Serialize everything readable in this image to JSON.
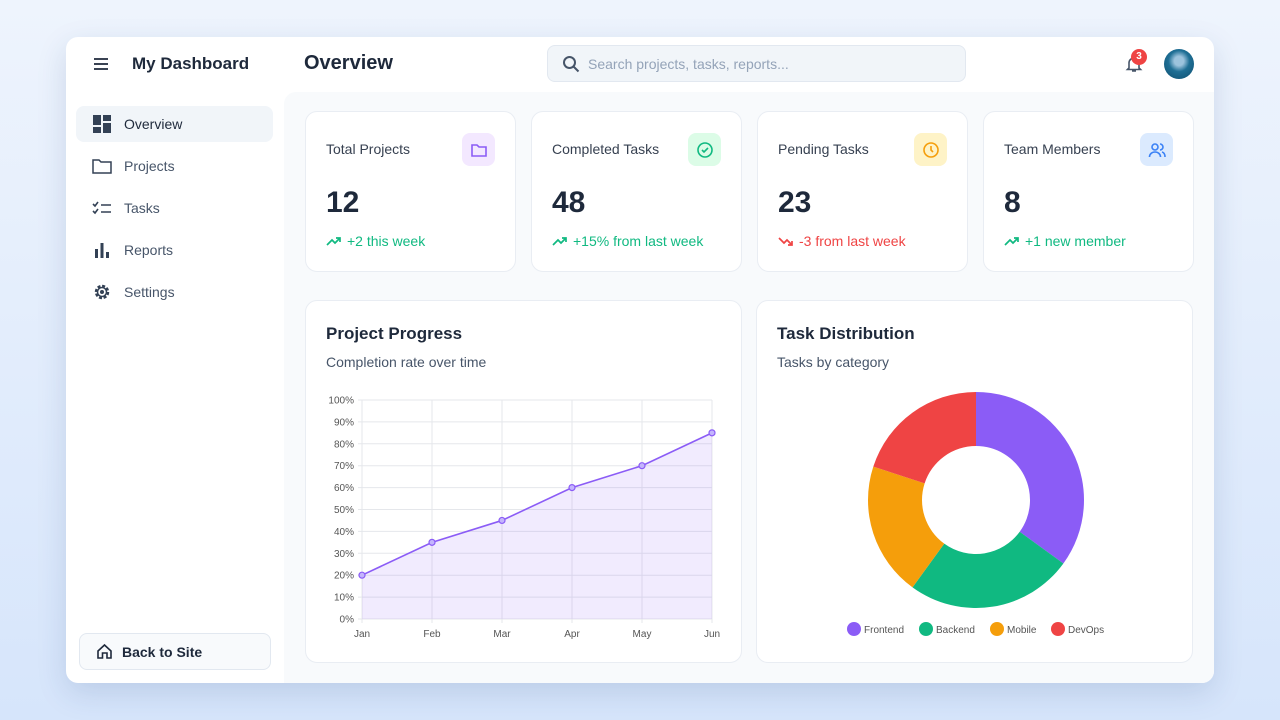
{
  "header": {
    "brand": "My Dashboard",
    "title": "Overview",
    "search_placeholder": "Search projects, tasks, reports...",
    "notifications": "3"
  },
  "sidebar": {
    "items": [
      {
        "label": "Overview",
        "icon": "dashboard-icon"
      },
      {
        "label": "Projects",
        "icon": "folder-icon"
      },
      {
        "label": "Tasks",
        "icon": "checklist-icon"
      },
      {
        "label": "Reports",
        "icon": "bar-chart-icon"
      },
      {
        "label": "Settings",
        "icon": "gear-icon"
      }
    ],
    "back": "Back to Site"
  },
  "stats": [
    {
      "label": "Total Projects",
      "value": "12",
      "change": "+2 this week",
      "trend": "up",
      "icon": "folder-icon",
      "color": "#8b5cf6",
      "bg": "#f3e8ff"
    },
    {
      "label": "Completed Tasks",
      "value": "48",
      "change": "+15% from last week",
      "trend": "up",
      "icon": "check-circle-icon",
      "color": "#10b981",
      "bg": "#dcfce7"
    },
    {
      "label": "Pending Tasks",
      "value": "23",
      "change": "-3 from last week",
      "trend": "down",
      "icon": "clock-icon",
      "color": "#f59e0b",
      "bg": "#fef3c7"
    },
    {
      "label": "Team Members",
      "value": "8",
      "change": "+1 new member",
      "trend": "up",
      "icon": "users-icon",
      "color": "#3b82f6",
      "bg": "#dbeafe"
    }
  ],
  "colors": {
    "up": "#10b981",
    "down": "#ef4444"
  },
  "chart_data": [
    {
      "type": "area",
      "title": "Project Progress",
      "subtitle": "Completion rate over time",
      "categories": [
        "Jan",
        "Feb",
        "Mar",
        "Apr",
        "May",
        "Jun"
      ],
      "values": [
        20,
        35,
        45,
        60,
        70,
        85
      ],
      "ylim": [
        0,
        100
      ],
      "yticks": [
        "0%",
        "10%",
        "20%",
        "30%",
        "40%",
        "50%",
        "60%",
        "70%",
        "80%",
        "90%",
        "100%"
      ],
      "grid": true,
      "color": "#8b5cf6"
    },
    {
      "type": "pie",
      "title": "Task Distribution",
      "subtitle": "Tasks by category",
      "donut": true,
      "legend": "bottom",
      "categories": [
        "Frontend",
        "Backend",
        "Mobile",
        "DevOps"
      ],
      "values": [
        35,
        25,
        20,
        20
      ],
      "colors": [
        "#8b5cf6",
        "#10b981",
        "#f59e0b",
        "#ef4444"
      ]
    }
  ]
}
